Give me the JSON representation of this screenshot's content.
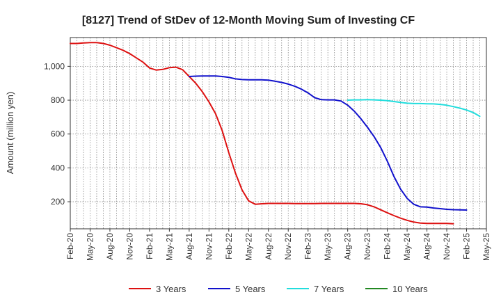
{
  "chart_data": {
    "type": "line",
    "title": "[8127]  Trend of StDev of 12-Month Moving Sum of Investing CF",
    "xlabel": "",
    "ylabel": "Amount (million yen)",
    "x_ticks": [
      "Feb-20",
      "May-20",
      "Aug-20",
      "Nov-20",
      "Feb-21",
      "May-21",
      "Aug-21",
      "Nov-21",
      "Feb-22",
      "May-22",
      "Aug-22",
      "Nov-22",
      "Feb-23",
      "May-23",
      "Aug-23",
      "Nov-23",
      "Feb-24",
      "May-24",
      "Aug-24",
      "Nov-24",
      "Feb-25",
      "May-25"
    ],
    "y_ticks": [
      200,
      400,
      600,
      800,
      1000
    ],
    "y_tick_labels": [
      "200",
      "400",
      "600",
      "800",
      "1,000"
    ],
    "ylim": [
      40,
      1170
    ],
    "grid": true,
    "legend_position": "bottom",
    "series": [
      {
        "name": "3 Years",
        "color": "#dd1111",
        "start_index": 0,
        "values": [
          1135,
          1135,
          1138,
          1140,
          1140,
          1135,
          1125,
          1110,
          1095,
          1075,
          1050,
          1025,
          990,
          978,
          982,
          992,
          995,
          980,
          940,
          900,
          850,
          790,
          720,
          620,
          490,
          370,
          270,
          205,
          185,
          188,
          190,
          190,
          190,
          190,
          189,
          189,
          189,
          189,
          190,
          190,
          190,
          190,
          190,
          190,
          188,
          182,
          170,
          152,
          135,
          118,
          103,
          90,
          80,
          74,
          72,
          72,
          72,
          72,
          70
        ]
      },
      {
        "name": "5 Years",
        "color": "#1111cc",
        "start_index": 18,
        "values": [
          940,
          942,
          943,
          943,
          943,
          940,
          935,
          926,
          922,
          920,
          920,
          920,
          918,
          912,
          905,
          895,
          882,
          865,
          843,
          815,
          803,
          802,
          802,
          795,
          770,
          735,
          690,
          640,
          585,
          520,
          440,
          350,
          275,
          220,
          185,
          170,
          168,
          163,
          159,
          155,
          153,
          152,
          151
        ]
      },
      {
        "name": "7 Years",
        "color": "#22dddd",
        "start_index": 42,
        "values": [
          800,
          802,
          802,
          803,
          802,
          800,
          797,
          792,
          787,
          782,
          780,
          780,
          779,
          778,
          775,
          770,
          762,
          753,
          742,
          727,
          705
        ]
      },
      {
        "name": "10 Years",
        "color": "#228822",
        "start_index": 0,
        "values": []
      }
    ]
  }
}
